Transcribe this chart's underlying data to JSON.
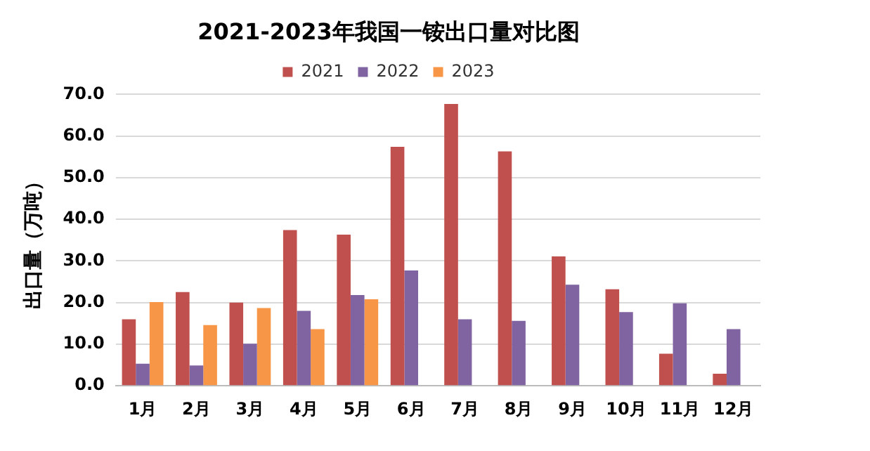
{
  "chart_data": {
    "type": "bar",
    "title": "2021-2023年我国一铵出口量对比图",
    "ylabel": "出口量（万吨）",
    "categories": [
      "1月",
      "2月",
      "3月",
      "4月",
      "5月",
      "6月",
      "7月",
      "8月",
      "9月",
      "10月",
      "11月",
      "12月"
    ],
    "series": [
      {
        "name": "2021",
        "color": "#c0504d",
        "values": [
          16.0,
          22.5,
          20.0,
          37.4,
          36.3,
          57.4,
          67.7,
          56.3,
          31.1,
          23.2,
          7.7,
          2.9
        ]
      },
      {
        "name": "2022",
        "color": "#8064a2",
        "values": [
          5.3,
          4.9,
          10.1,
          18.0,
          21.8,
          27.7,
          16.0,
          15.6,
          24.3,
          17.7,
          19.8,
          13.6
        ]
      },
      {
        "name": "2023",
        "color": "#f79646",
        "values": [
          20.1,
          14.6,
          18.7,
          13.6,
          20.8,
          null,
          null,
          null,
          null,
          null,
          null,
          null
        ]
      }
    ],
    "ylim": [
      0,
      70
    ],
    "yticks": [
      {
        "value": 0,
        "label": "0.0"
      },
      {
        "value": 10,
        "label": "10.0"
      },
      {
        "value": 20,
        "label": "20.0"
      },
      {
        "value": 30,
        "label": "30.0"
      },
      {
        "value": 40,
        "label": "40.0"
      },
      {
        "value": 50,
        "label": "50.0"
      },
      {
        "value": 60,
        "label": "60.0"
      },
      {
        "value": 70,
        "label": "70.0"
      }
    ],
    "grid": "y",
    "legend": "top"
  }
}
